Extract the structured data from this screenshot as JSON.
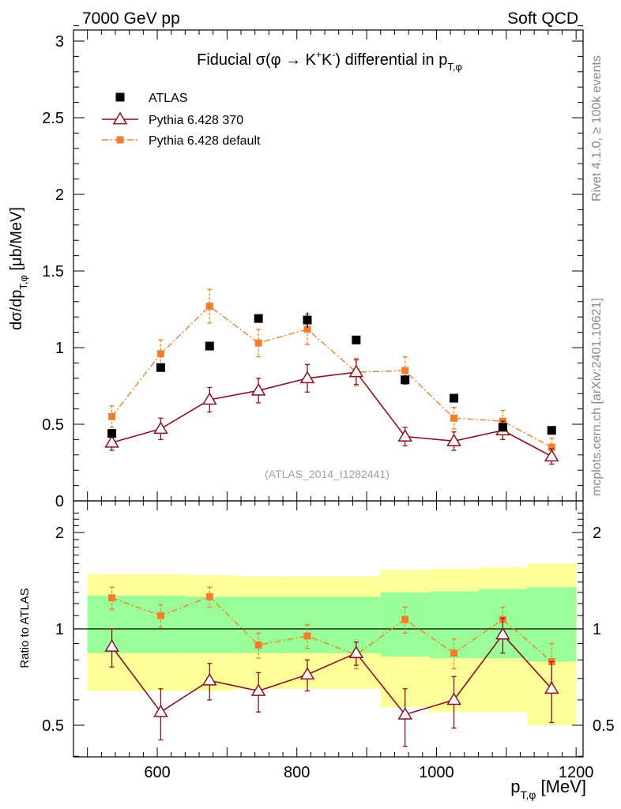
{
  "header": {
    "left": "7000 GeV pp",
    "right": "Soft QCD"
  },
  "side_labels": {
    "rivet": "Rivet 4.1.0, ≥ 100k events",
    "mcplots": "mcplots.cern.ch [arXiv:2401.10621]"
  },
  "watermark": "(ATLAS_2014_I1282441)",
  "chart_data": [
    {
      "type": "scatter",
      "title": "Fiducial σ(φ → K⁺K⁻) differential in p_T,φ",
      "title_parts": {
        "main": "Fiducial σ(φ →  K",
        "sup1": "+",
        "mid": "K",
        "sup2": "-",
        "tail": ") differential in p",
        "sub": "T,φ"
      },
      "xlabel": "p_T,φ [MeV]",
      "ylabel": "dσ/dp_T,φ [μb/MeV]",
      "ylabel_parts": {
        "main": "dσ/dp",
        "sub": "T,φ",
        "tail": " [μb/MeV]"
      },
      "xlim": [
        500,
        1200
      ],
      "ylim": [
        0,
        3.1
      ],
      "yticks": [
        0,
        0.5,
        1,
        1.5,
        2,
        2.5,
        3
      ],
      "ytick_labels": [
        "0",
        "0.5",
        "1",
        "1.5",
        "2",
        "2.5",
        "3"
      ],
      "bin_edges": [
        500,
        570,
        640,
        710,
        780,
        850,
        920,
        990,
        1060,
        1130,
        1200
      ],
      "x": [
        535,
        605,
        675,
        745,
        815,
        885,
        955,
        1025,
        1095,
        1165
      ],
      "legend_position": "top-left",
      "series": [
        {
          "name": "ATLAS",
          "style": "data",
          "color": "#000000",
          "values": [
            0.44,
            0.87,
            1.01,
            1.19,
            1.18,
            1.05,
            0.79,
            0.67,
            0.48,
            0.46
          ],
          "errors": [
            0.02,
            0.02,
            0.02,
            0.02,
            0.05,
            0.02,
            0.03,
            0.02,
            0.02,
            0.02
          ]
        },
        {
          "name": "Pythia 6.428 370",
          "style": "solid-triangle",
          "color": "#8b0f1e",
          "values": [
            0.38,
            0.47,
            0.66,
            0.72,
            0.8,
            0.84,
            0.42,
            0.39,
            0.46,
            0.29
          ],
          "errors": [
            0.05,
            0.07,
            0.08,
            0.08,
            0.09,
            0.08,
            0.06,
            0.06,
            0.06,
            0.05
          ]
        },
        {
          "name": "Pythia 6.428 default",
          "style": "dashdot-square",
          "color": "#f57d27",
          "values": [
            0.55,
            0.96,
            1.27,
            1.03,
            1.12,
            0.84,
            0.85,
            0.54,
            0.52,
            0.35
          ],
          "errors": [
            0.07,
            0.09,
            0.11,
            0.09,
            0.1,
            0.09,
            0.09,
            0.07,
            0.07,
            0.06
          ]
        }
      ]
    },
    {
      "type": "scatter",
      "title": "",
      "xlabel": "p_T,φ [MeV]",
      "xlabel_parts": {
        "main": "p",
        "sub": "T,φ",
        "tail": " [MeV]"
      },
      "ylabel": "Ratio to ATLAS",
      "xlim": [
        480,
        1210
      ],
      "ylim": [
        0.4,
        2.3
      ],
      "xticks": [
        600,
        800,
        1000,
        1200
      ],
      "xtick_labels": [
        "600",
        "800",
        "1000",
        "1200"
      ],
      "yticks": [
        0.5,
        1,
        2
      ],
      "ytick_labels": [
        "0.5",
        "1",
        "2"
      ],
      "reference_line": 1,
      "x": [
        535,
        605,
        675,
        745,
        815,
        885,
        955,
        1025,
        1095,
        1165
      ],
      "bands": {
        "edges": [
          500,
          570,
          640,
          710,
          780,
          850,
          920,
          990,
          1060,
          1130,
          1200
        ],
        "yellow_low": [
          0.64,
          0.64,
          0.64,
          0.65,
          0.65,
          0.65,
          0.57,
          0.55,
          0.55,
          0.5
        ],
        "yellow_high": [
          1.48,
          1.48,
          1.47,
          1.46,
          1.46,
          1.46,
          1.53,
          1.54,
          1.56,
          1.6
        ],
        "green_low": [
          0.84,
          0.84,
          0.84,
          0.84,
          0.84,
          0.84,
          0.82,
          0.81,
          0.81,
          0.79
        ],
        "green_high": [
          1.27,
          1.27,
          1.26,
          1.26,
          1.26,
          1.26,
          1.3,
          1.31,
          1.33,
          1.35
        ]
      },
      "series": [
        {
          "name": "Pythia 6.428 370",
          "style": "solid-triangle",
          "color": "#8b0f1e",
          "values": [
            0.88,
            0.55,
            0.69,
            0.64,
            0.72,
            0.84,
            0.54,
            0.6,
            0.96,
            0.65
          ],
          "errors": [
            0.12,
            0.1,
            0.09,
            0.09,
            0.08,
            0.07,
            0.11,
            0.11,
            0.12,
            0.14
          ]
        },
        {
          "name": "Pythia 6.428 default",
          "style": "dashdot-square",
          "color": "#f57d27",
          "values": [
            1.25,
            1.1,
            1.26,
            0.89,
            0.95,
            0.83,
            1.07,
            0.84,
            1.07,
            0.79
          ],
          "errors": [
            0.1,
            0.09,
            0.09,
            0.08,
            0.08,
            0.08,
            0.1,
            0.09,
            0.1,
            0.11
          ]
        }
      ]
    }
  ]
}
